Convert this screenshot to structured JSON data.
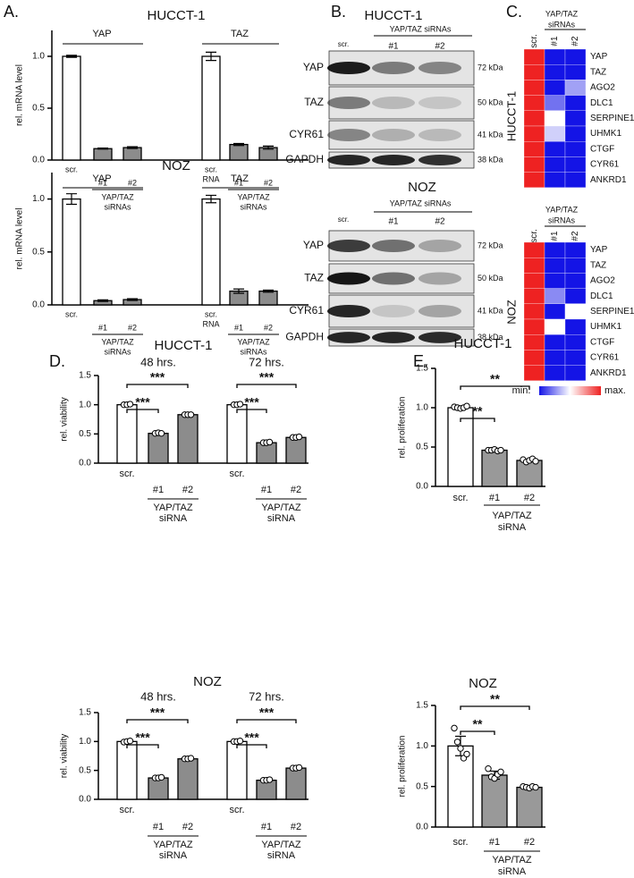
{
  "chart_data": [
    {
      "type": "bar",
      "panel": "A.",
      "title": "HUCCT-1",
      "ylabel": "rel. mRNA level",
      "ylim": [
        0,
        1.25
      ],
      "yticks": [
        {
          "value": 0,
          "label": "0.0"
        },
        0.5,
        {
          "value": 1,
          "label": "1.0"
        }
      ],
      "colors": [
        "#ffffff",
        "#8c8c8c",
        "#8c8c8c"
      ],
      "groups": [
        {
          "label": "YAP",
          "categories": [
            "scr.",
            "#1",
            "#2"
          ],
          "sublabel": [
            "YAP/TAZ",
            "siRNAs"
          ],
          "values": [
            1.0,
            0.11,
            0.12
          ],
          "errors": [
            0.01,
            0.005,
            0.008
          ]
        },
        {
          "label": "TAZ",
          "categories": [
            [
              "scr.",
              "RNA"
            ],
            "#1",
            "#2"
          ],
          "sublabel": [
            "YAP/TAZ",
            "siRNAs"
          ],
          "values": [
            1.0,
            0.15,
            0.12
          ],
          "errors": [
            0.04,
            0.01,
            0.015
          ]
        }
      ]
    },
    {
      "type": "bar",
      "title": "NOZ",
      "ylabel": "rel. mRNA level",
      "ylim": [
        0,
        1.25
      ],
      "yticks": [
        {
          "value": 0,
          "label": "0.0"
        },
        0.5,
        {
          "value": 1,
          "label": "1.0"
        }
      ],
      "colors": [
        "#ffffff",
        "#8c8c8c",
        "#8c8c8c"
      ],
      "groups": [
        {
          "label": "YAP",
          "categories": [
            "scr.",
            "#1",
            "#2"
          ],
          "sublabel": [
            "YAP/TAZ",
            "siRNAs"
          ],
          "values": [
            1.0,
            0.04,
            0.05
          ],
          "errors": [
            0.05,
            0.008,
            0.008
          ]
        },
        {
          "label": "TAZ",
          "categories": [
            [
              "scr.",
              "RNA"
            ],
            "#1",
            "#2"
          ],
          "sublabel": [
            "YAP/TAZ",
            "siRNAs"
          ],
          "values": [
            1.0,
            0.13,
            0.13
          ],
          "errors": [
            0.035,
            0.02,
            0.01
          ]
        }
      ]
    },
    {
      "type": "blot",
      "panel": "B.",
      "title": "HUCCT-1",
      "header": "YAP/TAZ siRNAs",
      "lanes": [
        "scr.",
        "#1",
        "#2"
      ],
      "rows": [
        {
          "protein": "YAP",
          "size": "72 kDa"
        },
        {
          "protein": "TAZ",
          "size": "50 kDa"
        },
        {
          "protein": "CYR61",
          "size": "41 kDa"
        },
        {
          "protein": "GAPDH",
          "size": "38 kDa"
        }
      ]
    },
    {
      "type": "blot",
      "title": "NOZ",
      "header": "YAP/TAZ siRNAs",
      "lanes": [
        "scr.",
        "#1",
        "#2"
      ],
      "rows": [
        {
          "protein": "YAP",
          "size": "72 kDa"
        },
        {
          "protein": "TAZ",
          "size": "50 kDa"
        },
        {
          "protein": "CYR61",
          "size": "41 kDa"
        },
        {
          "protein": "GAPDH",
          "size": "38 kDa"
        }
      ]
    },
    {
      "type": "heatmap",
      "panel": "C.",
      "title": "HUCCT-1",
      "header": [
        "YAP/TAZ",
        "siRNAs"
      ],
      "columns": [
        "scr.",
        "#1",
        "#2"
      ],
      "rows": [
        "YAP",
        "TAZ",
        "AGO2",
        "DLC1",
        "SERPINE1",
        "UHMK1",
        "CTGF",
        "CYR61",
        "ANKRD1"
      ],
      "colorscale": [
        "#1414e6",
        "#ffffff",
        "#ee2222"
      ],
      "values": [
        [
          1,
          0,
          0
        ],
        [
          1,
          0,
          0
        ],
        [
          1,
          0,
          0.3
        ],
        [
          1,
          0.2,
          0
        ],
        [
          1,
          0.5,
          0
        ],
        [
          1,
          0.4,
          0
        ],
        [
          1,
          0,
          0
        ],
        [
          1,
          0,
          0
        ],
        [
          1,
          0,
          0
        ]
      ]
    },
    {
      "type": "heatmap",
      "title": "NOZ",
      "header": [
        "YAP/TAZ",
        "siRNAs"
      ],
      "columns": [
        "scr.",
        "#1",
        "#2"
      ],
      "rows": [
        "YAP",
        "TAZ",
        "AGO2",
        "DLC1",
        "SERPINE1",
        "UHMK1",
        "CTGF",
        "CYR61",
        "ANKRD1"
      ],
      "colorscale": [
        "#1414e6",
        "#ffffff",
        "#ee2222"
      ],
      "legend": [
        "min.",
        "max."
      ],
      "values": [
        [
          1,
          0,
          0
        ],
        [
          1,
          0,
          0
        ],
        [
          1,
          0,
          0
        ],
        [
          1,
          0.25,
          0
        ],
        [
          1,
          0,
          0.5
        ],
        [
          1,
          0.5,
          0
        ],
        [
          1,
          0,
          0
        ],
        [
          1,
          0,
          0
        ],
        [
          1,
          0,
          0
        ]
      ]
    },
    {
      "type": "bar",
      "panel": "D.",
      "title": "HUCCT-1",
      "ylabel": "rel. viability",
      "ylim": [
        0,
        1.5
      ],
      "yticks": [
        {
          "value": 0,
          "label": "0.0"
        },
        0.5,
        {
          "value": 1,
          "label": "1.0"
        },
        1.5
      ],
      "colors": [
        "#ffffff",
        "#8c8c8c",
        "#8c8c8c"
      ],
      "groups": [
        {
          "label": "48 hrs.",
          "categories": [
            "scr.",
            "#1",
            "#2"
          ],
          "sublabel": [
            "YAP/TAZ",
            "siRNA"
          ],
          "values": [
            1.0,
            0.51,
            0.83
          ],
          "points": [
            [
              1.0,
              1.0,
              1.01
            ],
            [
              0.51,
              0.52,
              0.51
            ],
            [
              0.83,
              0.83,
              0.83
            ]
          ],
          "annotations": [
            "***",
            "***"
          ]
        },
        {
          "label": "72 hrs.",
          "categories": [
            "scr.",
            "#1",
            "#2"
          ],
          "sublabel": [
            "YAP/TAZ",
            "siRNA"
          ],
          "values": [
            1.0,
            0.35,
            0.44
          ],
          "points": [
            [
              1.0,
              1.0,
              1.01
            ],
            [
              0.35,
              0.35,
              0.36
            ],
            [
              0.44,
              0.44,
              0.45
            ]
          ],
          "annotations": [
            "***",
            "***"
          ]
        }
      ]
    },
    {
      "type": "bar",
      "title": "NOZ",
      "ylabel": "rel. viability",
      "ylim": [
        0,
        1.5
      ],
      "yticks": [
        {
          "value": 0,
          "label": "0.0"
        },
        0.5,
        {
          "value": 1,
          "label": "1.0"
        },
        1.5
      ],
      "colors": [
        "#ffffff",
        "#8c8c8c",
        "#8c8c8c"
      ],
      "groups": [
        {
          "label": "48 hrs.",
          "categories": [
            "scr.",
            "#1",
            "#2"
          ],
          "sublabel": [
            "YAP/TAZ",
            "siRNA"
          ],
          "values": [
            1.0,
            0.37,
            0.7
          ],
          "points": [
            [
              0.99,
              1.0,
              1.01
            ],
            [
              0.37,
              0.37,
              0.38
            ],
            [
              0.7,
              0.7,
              0.71
            ]
          ],
          "annotations": [
            "***",
            "***"
          ]
        },
        {
          "label": "72 hrs.",
          "categories": [
            "scr.",
            "#1",
            "#2"
          ],
          "sublabel": [
            "YAP/TAZ",
            "siRNA"
          ],
          "values": [
            1.0,
            0.33,
            0.54
          ],
          "points": [
            [
              1.0,
              1.0,
              1.01
            ],
            [
              0.33,
              0.33,
              0.34
            ],
            [
              0.54,
              0.54,
              0.55
            ]
          ],
          "annotations": [
            "***",
            "***"
          ]
        }
      ]
    },
    {
      "type": "bar",
      "panel": "E.",
      "title": "HUCCT-1",
      "ylabel": "rel. proliferation",
      "ylim": [
        0,
        1.5
      ],
      "yticks": [
        {
          "value": 0,
          "label": "0.0"
        },
        0.5,
        {
          "value": 1,
          "label": "1.0"
        },
        1.5
      ],
      "colors": [
        "#ffffff",
        "#999999",
        "#999999"
      ],
      "groups": [
        {
          "categories": [
            "scr.",
            "#1",
            "#2"
          ],
          "sublabel": [
            "YAP/TAZ",
            "siRNA"
          ],
          "values": [
            1.0,
            0.46,
            0.33
          ],
          "points": [
            [
              1.01,
              1.0,
              0.99,
              1.0,
              1.02
            ],
            [
              0.46,
              0.46,
              0.47,
              0.45,
              0.46
            ],
            [
              0.34,
              0.31,
              0.33,
              0.35,
              0.32
            ]
          ],
          "annotations": [
            "**",
            "**"
          ]
        }
      ]
    },
    {
      "type": "bar",
      "title": "NOZ",
      "ylabel": "rel. proliferation",
      "ylim": [
        0,
        1.5
      ],
      "yticks": [
        {
          "value": 0,
          "label": "0.0"
        },
        0.5,
        {
          "value": 1,
          "label": "1.0"
        },
        1.5
      ],
      "colors": [
        "#ffffff",
        "#999999",
        "#999999"
      ],
      "groups": [
        {
          "categories": [
            "scr.",
            "#1",
            "#2"
          ],
          "sublabel": [
            "YAP/TAZ",
            "siRNA"
          ],
          "values": [
            1.0,
            0.64,
            0.49
          ],
          "errors": [
            0.12,
            0.05,
            0.02
          ],
          "points": [
            [
              1.22,
              1.05,
              0.97,
              0.85,
              0.9
            ],
            [
              0.72,
              0.62,
              0.6,
              0.65,
              0.68
            ],
            [
              0.5,
              0.49,
              0.48,
              0.5,
              0.49
            ]
          ],
          "annotations": [
            "**",
            "**"
          ]
        }
      ]
    }
  ]
}
